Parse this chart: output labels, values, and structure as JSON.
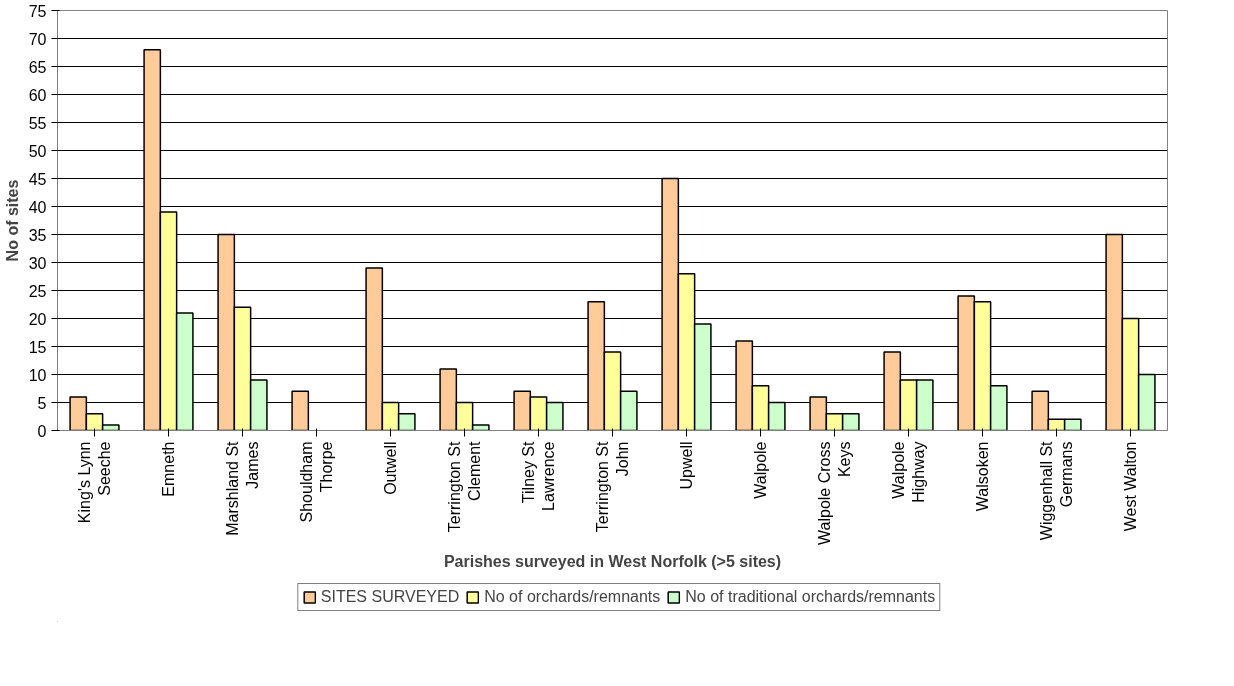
{
  "chart_data": {
    "type": "bar",
    "xlabel": "Parishes surveyed in West Norfolk (>5 sites)",
    "ylabel": "No of sites",
    "categories": [
      "King's Lynn Seeche",
      "Emneth",
      "Marshland St James",
      "Shouldham Thorpe",
      "Outwell",
      "Terrington St Clement",
      "Tilney St Lawrence",
      "Terrington St John",
      "Upwell",
      "Walpole",
      "Walpole Cross Keys",
      "Walpole Highway",
      "Walsoken",
      "Wiggenhall St Germans",
      "West Walton"
    ],
    "series": [
      {
        "name": "SITES SURVEYED",
        "color": "#ffcc99",
        "values": [
          6,
          68,
          35,
          7,
          29,
          11,
          7,
          23,
          45,
          16,
          6,
          14,
          24,
          7,
          35
        ]
      },
      {
        "name": "No of orchards/remnants",
        "color": "#ffff99",
        "values": [
          3,
          39,
          22,
          0,
          5,
          5,
          6,
          14,
          28,
          8,
          3,
          9,
          23,
          2,
          20
        ]
      },
      {
        "name": "No of traditional orchards/remnants",
        "color": "#ccffcc",
        "values": [
          1,
          21,
          9,
          0,
          3,
          1,
          5,
          7,
          19,
          5,
          3,
          9,
          8,
          2,
          10
        ]
      }
    ],
    "ylim": [
      0,
      75
    ],
    "yticks": [
      0,
      5,
      10,
      15,
      20,
      25,
      30,
      35,
      40,
      45,
      50,
      55,
      60,
      65,
      70,
      75
    ],
    "grid": "y",
    "legend": "bottom"
  }
}
